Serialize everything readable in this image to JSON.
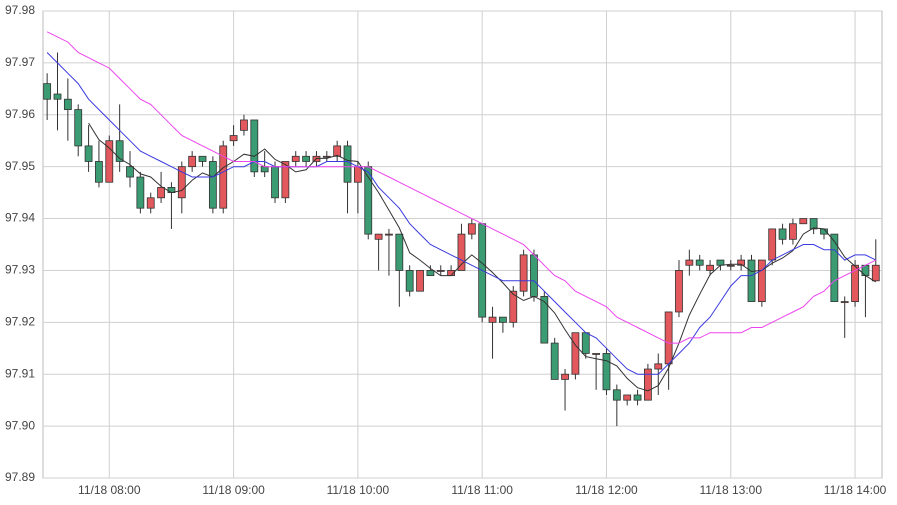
{
  "chart_data": {
    "type": "candlestick",
    "categories": [
      null,
      null,
      null,
      null,
      null,
      null,
      "11/18 08:00",
      null,
      null,
      null,
      null,
      null,
      null,
      null,
      null,
      null,
      null,
      null,
      "11/18 09:00",
      null,
      null,
      null,
      null,
      null,
      null,
      null,
      null,
      null,
      null,
      null,
      "11/18 10:00",
      null,
      null,
      null,
      null,
      null,
      null,
      null,
      null,
      null,
      null,
      null,
      "11/18 11:00",
      null,
      null,
      null,
      null,
      null,
      null,
      null,
      null,
      null,
      null,
      null,
      "11/18 12:00",
      null,
      null,
      null,
      null,
      null,
      null,
      null,
      null,
      null,
      null,
      null,
      "11/18 13:00",
      null,
      null,
      null,
      null,
      null,
      null,
      null,
      null,
      null,
      null,
      null,
      "11/18 14:00",
      null,
      null
    ],
    "open": [
      97.966,
      97.964,
      97.963,
      97.961,
      97.954,
      97.951,
      97.947,
      97.955,
      97.95,
      97.948,
      97.942,
      97.944,
      97.946,
      97.944,
      97.95,
      97.952,
      97.951,
      97.942,
      97.955,
      97.957,
      97.959,
      97.95,
      97.95,
      97.944,
      97.951,
      97.952,
      97.951,
      97.952,
      97.952,
      97.954,
      97.947,
      97.95,
      97.936,
      97.937,
      97.937,
      97.93,
      97.926,
      97.93,
      97.93,
      97.929,
      97.93,
      97.937,
      97.939,
      97.92,
      97.921,
      97.92,
      97.926,
      97.933,
      97.925,
      97.916,
      97.909,
      97.91,
      97.918,
      97.914,
      97.914,
      97.907,
      97.905,
      97.906,
      97.905,
      97.911,
      97.912,
      97.922,
      97.931,
      97.932,
      97.93,
      97.932,
      97.931,
      97.931,
      97.932,
      97.924,
      97.932,
      97.938,
      97.936,
      97.939,
      97.94,
      97.938,
      97.937,
      97.924,
      97.924,
      97.931,
      97.928
    ],
    "high": [
      97.968,
      97.972,
      97.967,
      97.962,
      97.958,
      97.955,
      97.956,
      97.962,
      97.953,
      97.949,
      97.945,
      97.949,
      97.947,
      97.951,
      97.953,
      97.952,
      97.952,
      97.955,
      97.958,
      97.96,
      97.959,
      97.953,
      97.951,
      97.951,
      97.953,
      97.953,
      97.953,
      97.953,
      97.955,
      97.955,
      97.951,
      97.951,
      97.937,
      97.938,
      97.937,
      97.931,
      97.93,
      97.931,
      97.931,
      97.931,
      97.939,
      97.94,
      97.939,
      97.923,
      97.921,
      97.927,
      97.934,
      97.934,
      97.926,
      97.917,
      97.911,
      97.918,
      97.918,
      97.914,
      97.915,
      97.908,
      97.906,
      97.907,
      97.912,
      97.914,
      97.922,
      97.932,
      97.934,
      97.933,
      97.932,
      97.932,
      97.932,
      97.933,
      97.933,
      97.932,
      97.938,
      97.939,
      97.94,
      97.94,
      97.94,
      97.938,
      97.937,
      97.925,
      97.932,
      97.931,
      97.936
    ],
    "low": [
      97.959,
      97.957,
      97.955,
      97.952,
      97.949,
      97.946,
      97.947,
      97.949,
      97.946,
      97.941,
      97.941,
      97.943,
      97.938,
      97.941,
      97.949,
      97.95,
      97.941,
      97.941,
      97.954,
      97.956,
      97.948,
      97.948,
      97.943,
      97.943,
      97.95,
      97.95,
      97.95,
      97.951,
      97.951,
      97.941,
      97.941,
      97.936,
      97.93,
      97.929,
      97.923,
      97.925,
      97.926,
      97.929,
      97.929,
      97.929,
      97.93,
      97.936,
      97.92,
      97.913,
      97.918,
      97.919,
      97.925,
      97.924,
      97.916,
      97.909,
      97.903,
      97.909,
      97.913,
      97.907,
      97.906,
      97.9,
      97.904,
      97.904,
      97.905,
      97.906,
      97.907,
      97.921,
      97.929,
      97.93,
      97.929,
      97.93,
      97.93,
      97.93,
      97.924,
      97.923,
      97.931,
      97.935,
      97.935,
      97.939,
      97.937,
      97.936,
      97.924,
      97.917,
      97.923,
      97.921,
      97.928
    ],
    "close": [
      97.963,
      97.963,
      97.961,
      97.954,
      97.951,
      97.947,
      97.955,
      97.951,
      97.948,
      97.942,
      97.944,
      97.946,
      97.945,
      97.95,
      97.952,
      97.951,
      97.942,
      97.954,
      97.956,
      97.959,
      97.949,
      97.949,
      97.944,
      97.951,
      97.952,
      97.951,
      97.952,
      97.952,
      97.954,
      97.947,
      97.95,
      97.937,
      97.937,
      97.937,
      97.93,
      97.926,
      97.93,
      97.929,
      97.93,
      97.93,
      97.937,
      97.939,
      97.921,
      97.921,
      97.92,
      97.926,
      97.933,
      97.925,
      97.916,
      97.909,
      97.91,
      97.918,
      97.914,
      97.914,
      97.907,
      97.905,
      97.906,
      97.905,
      97.911,
      97.912,
      97.922,
      97.93,
      97.932,
      97.931,
      97.931,
      97.931,
      97.931,
      97.932,
      97.924,
      97.932,
      97.938,
      97.936,
      97.939,
      97.94,
      97.938,
      97.937,
      97.924,
      97.924,
      97.931,
      97.929,
      97.931
    ],
    "up_color": "#e2585c",
    "down_color": "#3b9c73",
    "border_color": "#333333",
    "series": [
      {
        "color": "#333333",
        "values": [
          null,
          null,
          null,
          null,
          97.9584,
          97.9552,
          97.9536,
          97.9516,
          97.9504,
          97.9486,
          97.948,
          97.9462,
          97.945,
          97.9454,
          97.9474,
          97.9488,
          97.948,
          97.9498,
          97.951,
          97.9524,
          97.952,
          97.9534,
          97.9514,
          97.9504,
          97.949,
          97.9494,
          97.9516,
          97.9516,
          97.9522,
          97.9512,
          97.951,
          97.948,
          97.945,
          97.9416,
          97.9382,
          97.9334,
          97.932,
          97.9304,
          97.929,
          97.929,
          97.9312,
          97.933,
          97.9314,
          97.9296,
          97.9276,
          97.9254,
          97.9242,
          97.925,
          97.924,
          97.9218,
          97.9186,
          97.9156,
          97.9134,
          97.913,
          97.9126,
          97.9116,
          97.9092,
          97.9074,
          97.9068,
          97.9078,
          97.9112,
          97.916,
          97.9214,
          97.9254,
          97.9292,
          97.931,
          97.9312,
          97.9312,
          97.9298,
          97.93,
          97.9314,
          97.9324,
          97.9338,
          97.937,
          97.9382,
          97.938,
          97.9356,
          97.9326,
          97.9308,
          97.929,
          97.9278
        ]
      },
      {
        "color": "#3a3ae0",
        "values": [
          97.972,
          97.97,
          97.968,
          97.966,
          97.963,
          97.961,
          97.959,
          97.957,
          97.955,
          97.953,
          97.952,
          97.951,
          97.95,
          97.949,
          97.948,
          97.948,
          97.948,
          97.949,
          97.95,
          97.95,
          97.951,
          97.951,
          97.95,
          97.95,
          97.95,
          97.95,
          97.95,
          97.951,
          97.951,
          97.951,
          97.95,
          97.949,
          97.946,
          97.944,
          97.942,
          97.939,
          97.937,
          97.935,
          97.934,
          97.933,
          97.932,
          97.931,
          97.93,
          97.929,
          97.928,
          97.928,
          97.928,
          97.928,
          97.926,
          97.924,
          97.922,
          97.92,
          97.918,
          97.917,
          97.915,
          97.913,
          97.911,
          97.91,
          97.91,
          97.91,
          97.912,
          97.914,
          97.916,
          97.919,
          97.921,
          97.924,
          97.927,
          97.929,
          97.929,
          97.93,
          97.932,
          97.933,
          97.934,
          97.935,
          97.935,
          97.934,
          97.934,
          97.932,
          97.933,
          97.933,
          97.932
        ]
      },
      {
        "color": "#ee44ee",
        "values": [
          97.976,
          97.975,
          97.974,
          97.972,
          97.971,
          97.97,
          97.969,
          97.967,
          97.965,
          97.963,
          97.962,
          97.96,
          97.958,
          97.956,
          97.955,
          97.954,
          97.953,
          97.952,
          97.951,
          97.951,
          97.951,
          97.95,
          97.95,
          97.95,
          97.95,
          97.95,
          97.95,
          97.95,
          97.95,
          97.95,
          97.95,
          97.95,
          97.949,
          97.948,
          97.947,
          97.946,
          97.945,
          97.944,
          97.943,
          97.942,
          97.941,
          97.94,
          97.939,
          97.938,
          97.937,
          97.936,
          97.935,
          97.933,
          97.931,
          97.929,
          97.928,
          97.926,
          97.925,
          97.924,
          97.923,
          97.921,
          97.92,
          97.919,
          97.918,
          97.917,
          97.916,
          97.916,
          97.917,
          97.917,
          97.918,
          97.918,
          97.918,
          97.918,
          97.919,
          97.919,
          97.92,
          97.921,
          97.922,
          97.923,
          97.925,
          97.926,
          97.928,
          97.929,
          97.93,
          97.931,
          97.932
        ]
      }
    ],
    "ylim": [
      97.89,
      97.98
    ],
    "yticks": [
      97.89,
      {
        "value": 97.9,
        "label": "97.90"
      },
      97.91,
      97.92,
      97.93,
      97.94,
      97.95,
      97.96,
      97.97,
      97.98
    ],
    "grid": true
  }
}
